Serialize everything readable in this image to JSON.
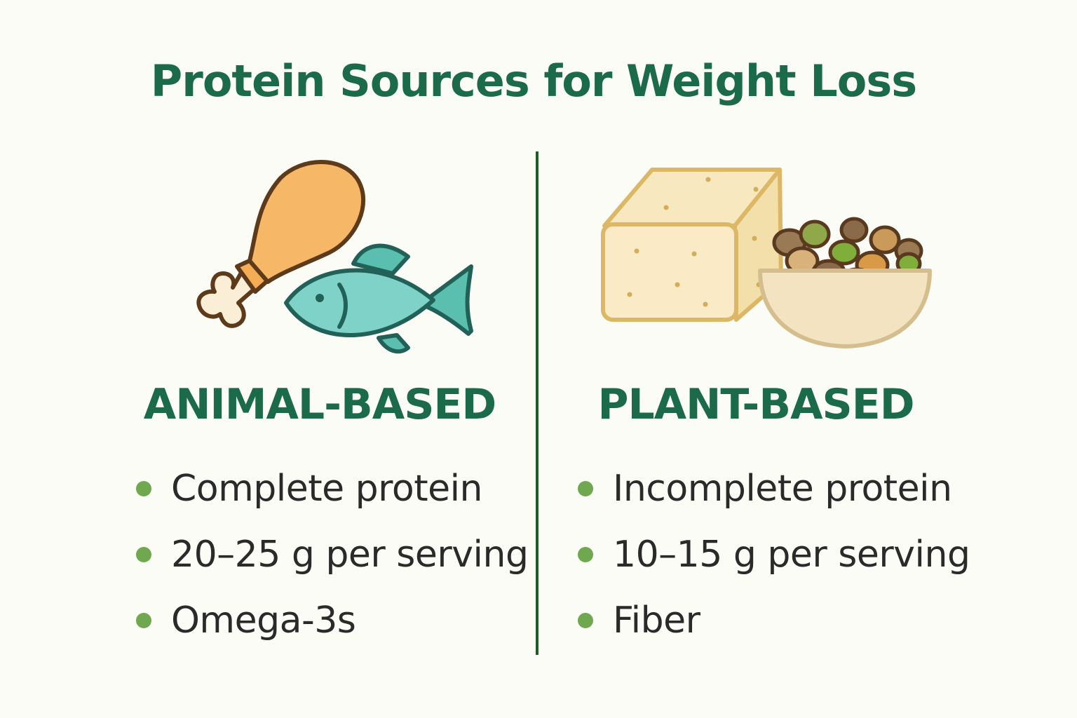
{
  "title": "Protein Sources for Weight Loss",
  "colors": {
    "title": "#1b6b48",
    "heading": "#1b6b48",
    "divider": "#1d5e22",
    "bullet": "#6fa84f",
    "text": "#2a2a2a"
  },
  "columns": [
    {
      "heading": "ANIMAL-BASED",
      "icons": [
        "chicken-drumstick-icon",
        "fish-icon"
      ],
      "items": [
        "Complete protein",
        "20–25 g per serving",
        "Omega-3s"
      ]
    },
    {
      "heading": "PLANT-BASED",
      "icons": [
        "tofu-block-icon",
        "legume-bowl-icon"
      ],
      "items": [
        "Incomplete protein",
        "10–15 g per serving",
        "Fiber"
      ]
    }
  ]
}
